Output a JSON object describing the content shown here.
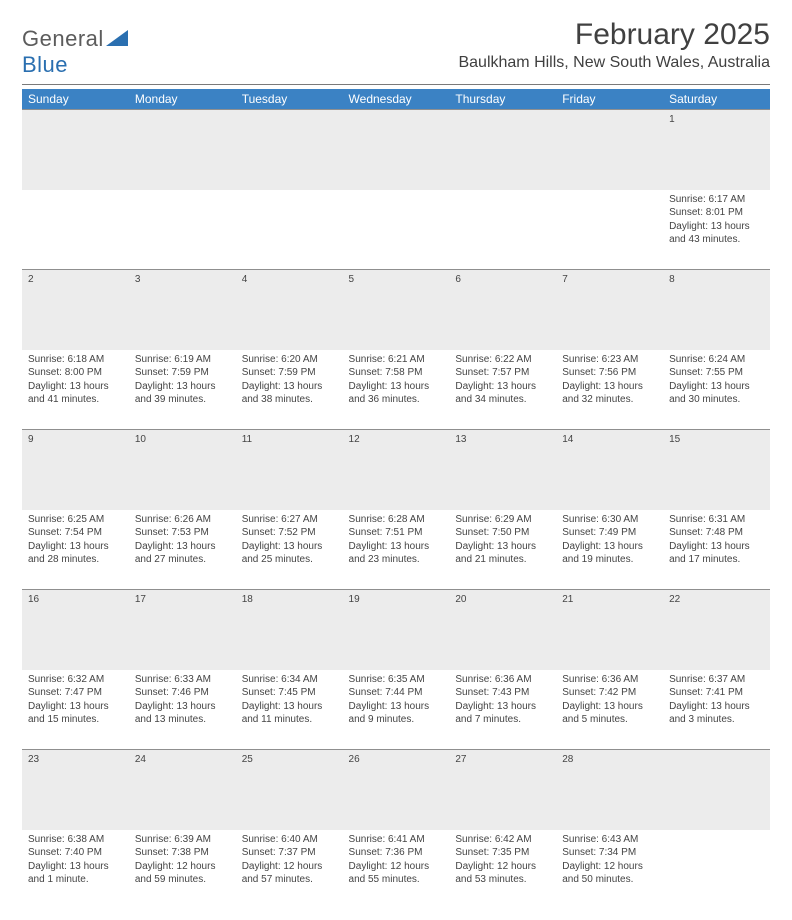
{
  "brand": {
    "part1": "General",
    "part2": "Blue"
  },
  "title": "February 2025",
  "location": "Baulkham Hills, New South Wales, Australia",
  "colors": {
    "header_bg": "#3b82c4",
    "header_text": "#ffffff",
    "daynum_bg": "#ececec",
    "rule": "#7a7a7a",
    "text": "#444444",
    "brand_gray": "#5c5c5c",
    "brand_blue": "#2a6fb0"
  },
  "weekdays": [
    "Sunday",
    "Monday",
    "Tuesday",
    "Wednesday",
    "Thursday",
    "Friday",
    "Saturday"
  ],
  "weeks": [
    {
      "nums": [
        "",
        "",
        "",
        "",
        "",
        "",
        "1"
      ],
      "cells": [
        null,
        null,
        null,
        null,
        null,
        null,
        {
          "sunrise": "Sunrise: 6:17 AM",
          "sunset": "Sunset: 8:01 PM",
          "day1": "Daylight: 13 hours",
          "day2": "and 43 minutes."
        }
      ]
    },
    {
      "nums": [
        "2",
        "3",
        "4",
        "5",
        "6",
        "7",
        "8"
      ],
      "cells": [
        {
          "sunrise": "Sunrise: 6:18 AM",
          "sunset": "Sunset: 8:00 PM",
          "day1": "Daylight: 13 hours",
          "day2": "and 41 minutes."
        },
        {
          "sunrise": "Sunrise: 6:19 AM",
          "sunset": "Sunset: 7:59 PM",
          "day1": "Daylight: 13 hours",
          "day2": "and 39 minutes."
        },
        {
          "sunrise": "Sunrise: 6:20 AM",
          "sunset": "Sunset: 7:59 PM",
          "day1": "Daylight: 13 hours",
          "day2": "and 38 minutes."
        },
        {
          "sunrise": "Sunrise: 6:21 AM",
          "sunset": "Sunset: 7:58 PM",
          "day1": "Daylight: 13 hours",
          "day2": "and 36 minutes."
        },
        {
          "sunrise": "Sunrise: 6:22 AM",
          "sunset": "Sunset: 7:57 PM",
          "day1": "Daylight: 13 hours",
          "day2": "and 34 minutes."
        },
        {
          "sunrise": "Sunrise: 6:23 AM",
          "sunset": "Sunset: 7:56 PM",
          "day1": "Daylight: 13 hours",
          "day2": "and 32 minutes."
        },
        {
          "sunrise": "Sunrise: 6:24 AM",
          "sunset": "Sunset: 7:55 PM",
          "day1": "Daylight: 13 hours",
          "day2": "and 30 minutes."
        }
      ]
    },
    {
      "nums": [
        "9",
        "10",
        "11",
        "12",
        "13",
        "14",
        "15"
      ],
      "cells": [
        {
          "sunrise": "Sunrise: 6:25 AM",
          "sunset": "Sunset: 7:54 PM",
          "day1": "Daylight: 13 hours",
          "day2": "and 28 minutes."
        },
        {
          "sunrise": "Sunrise: 6:26 AM",
          "sunset": "Sunset: 7:53 PM",
          "day1": "Daylight: 13 hours",
          "day2": "and 27 minutes."
        },
        {
          "sunrise": "Sunrise: 6:27 AM",
          "sunset": "Sunset: 7:52 PM",
          "day1": "Daylight: 13 hours",
          "day2": "and 25 minutes."
        },
        {
          "sunrise": "Sunrise: 6:28 AM",
          "sunset": "Sunset: 7:51 PM",
          "day1": "Daylight: 13 hours",
          "day2": "and 23 minutes."
        },
        {
          "sunrise": "Sunrise: 6:29 AM",
          "sunset": "Sunset: 7:50 PM",
          "day1": "Daylight: 13 hours",
          "day2": "and 21 minutes."
        },
        {
          "sunrise": "Sunrise: 6:30 AM",
          "sunset": "Sunset: 7:49 PM",
          "day1": "Daylight: 13 hours",
          "day2": "and 19 minutes."
        },
        {
          "sunrise": "Sunrise: 6:31 AM",
          "sunset": "Sunset: 7:48 PM",
          "day1": "Daylight: 13 hours",
          "day2": "and 17 minutes."
        }
      ]
    },
    {
      "nums": [
        "16",
        "17",
        "18",
        "19",
        "20",
        "21",
        "22"
      ],
      "cells": [
        {
          "sunrise": "Sunrise: 6:32 AM",
          "sunset": "Sunset: 7:47 PM",
          "day1": "Daylight: 13 hours",
          "day2": "and 15 minutes."
        },
        {
          "sunrise": "Sunrise: 6:33 AM",
          "sunset": "Sunset: 7:46 PM",
          "day1": "Daylight: 13 hours",
          "day2": "and 13 minutes."
        },
        {
          "sunrise": "Sunrise: 6:34 AM",
          "sunset": "Sunset: 7:45 PM",
          "day1": "Daylight: 13 hours",
          "day2": "and 11 minutes."
        },
        {
          "sunrise": "Sunrise: 6:35 AM",
          "sunset": "Sunset: 7:44 PM",
          "day1": "Daylight: 13 hours",
          "day2": "and 9 minutes."
        },
        {
          "sunrise": "Sunrise: 6:36 AM",
          "sunset": "Sunset: 7:43 PM",
          "day1": "Daylight: 13 hours",
          "day2": "and 7 minutes."
        },
        {
          "sunrise": "Sunrise: 6:36 AM",
          "sunset": "Sunset: 7:42 PM",
          "day1": "Daylight: 13 hours",
          "day2": "and 5 minutes."
        },
        {
          "sunrise": "Sunrise: 6:37 AM",
          "sunset": "Sunset: 7:41 PM",
          "day1": "Daylight: 13 hours",
          "day2": "and 3 minutes."
        }
      ]
    },
    {
      "nums": [
        "23",
        "24",
        "25",
        "26",
        "27",
        "28",
        ""
      ],
      "cells": [
        {
          "sunrise": "Sunrise: 6:38 AM",
          "sunset": "Sunset: 7:40 PM",
          "day1": "Daylight: 13 hours",
          "day2": "and 1 minute."
        },
        {
          "sunrise": "Sunrise: 6:39 AM",
          "sunset": "Sunset: 7:38 PM",
          "day1": "Daylight: 12 hours",
          "day2": "and 59 minutes."
        },
        {
          "sunrise": "Sunrise: 6:40 AM",
          "sunset": "Sunset: 7:37 PM",
          "day1": "Daylight: 12 hours",
          "day2": "and 57 minutes."
        },
        {
          "sunrise": "Sunrise: 6:41 AM",
          "sunset": "Sunset: 7:36 PM",
          "day1": "Daylight: 12 hours",
          "day2": "and 55 minutes."
        },
        {
          "sunrise": "Sunrise: 6:42 AM",
          "sunset": "Sunset: 7:35 PM",
          "day1": "Daylight: 12 hours",
          "day2": "and 53 minutes."
        },
        {
          "sunrise": "Sunrise: 6:43 AM",
          "sunset": "Sunset: 7:34 PM",
          "day1": "Daylight: 12 hours",
          "day2": "and 50 minutes."
        },
        null
      ]
    }
  ]
}
